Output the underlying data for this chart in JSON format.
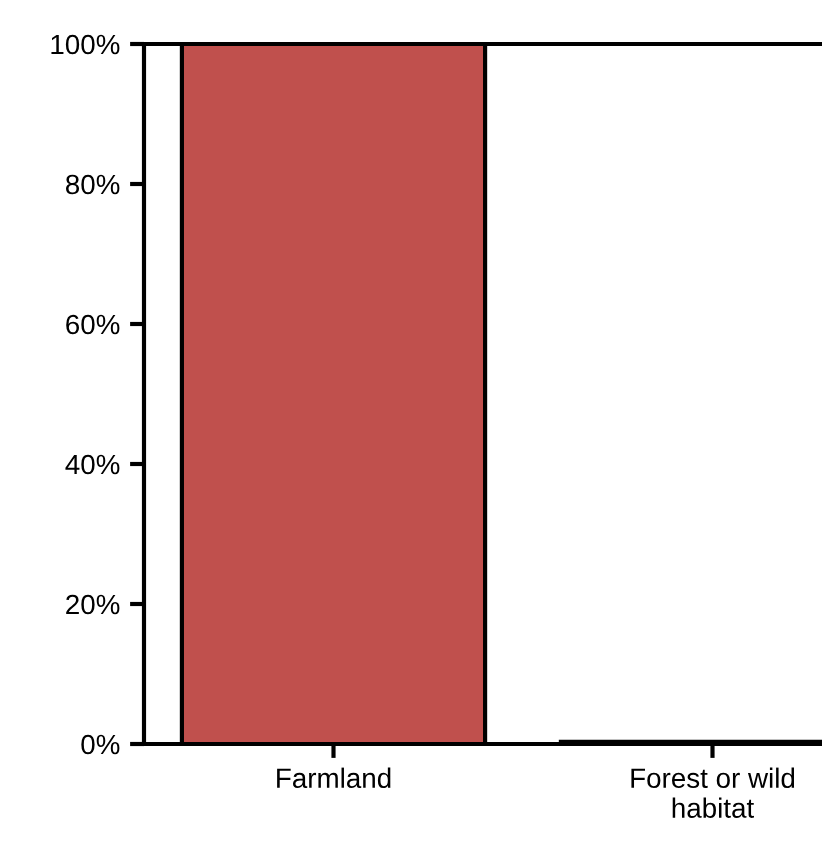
{
  "chart_data": {
    "type": "bar",
    "categories": [
      "Farmland",
      "Forest or wild\nhabitat"
    ],
    "series": [
      {
        "color": "#c0504d",
        "values": [
          100,
          0.3
        ]
      }
    ],
    "ylim": [
      0,
      100
    ],
    "yticks": [
      {
        "value": 0,
        "label": "0%"
      },
      {
        "value": 20,
        "label": "20%"
      },
      {
        "value": 40,
        "label": "40%"
      },
      {
        "value": 60,
        "label": "60%"
      },
      {
        "value": 80,
        "label": "80%"
      },
      {
        "value": 100,
        "label": "100%"
      }
    ],
    "grid": false,
    "legend": false
  }
}
